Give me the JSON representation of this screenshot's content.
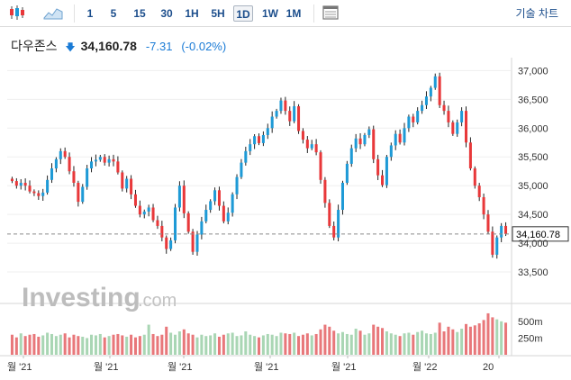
{
  "toolbar": {
    "timeframes": [
      "1",
      "5",
      "15",
      "30",
      "1H",
      "5H",
      "1D",
      "1W",
      "1M"
    ],
    "active": "1D",
    "chart_type_label": "기술 차트"
  },
  "quote": {
    "name": "다우존스",
    "price": "34,160.78",
    "change": "-7.31",
    "change_pct": "(-0.02%)"
  },
  "colors": {
    "up": "#1e9ad6",
    "down": "#e8383a",
    "volume_up": "#a9d6b4",
    "volume_down": "#e8777a",
    "accent": "#1c4e8c",
    "change": "#1a7bd6"
  },
  "watermark": {
    "brand": "Investing",
    "suffix": ".com"
  },
  "chart_data": {
    "type": "candlestick",
    "ylim": [
      33000,
      37100
    ],
    "yticks": [
      "37,000",
      "36,500",
      "36,000",
      "35,500",
      "35,000",
      "34,500",
      "34,000",
      "33,500"
    ],
    "last_price_label": "34,160.78",
    "last_price": 34160.78,
    "volume_ticks": [
      "500m",
      "250m"
    ],
    "volume_max": 700,
    "xticks": [
      "월 '21",
      "월 '21",
      "월 '21",
      "월 '21",
      "월 '21",
      "월 '22",
      "20"
    ],
    "close_path": [
      35080,
      35000,
      35050,
      35000,
      34900,
      34870,
      34820,
      34880,
      35100,
      35300,
      35460,
      35600,
      35500,
      35250,
      35050,
      34720,
      34980,
      35300,
      35420,
      35450,
      35500,
      35400,
      35460,
      35420,
      35230,
      34950,
      35120,
      34850,
      34650,
      34500,
      34550,
      34620,
      34400,
      34300,
      34100,
      33900,
      34050,
      34620,
      35000,
      34520,
      34200,
      33850,
      34150,
      34380,
      34580,
      34730,
      34920,
      34650,
      34380,
      34530,
      34850,
      35150,
      35400,
      35600,
      35720,
      35860,
      35740,
      35880,
      36000,
      36200,
      36300,
      36480,
      36300,
      36120,
      36380,
      35950,
      35800,
      35650,
      35720,
      35580,
      35100,
      34700,
      34300,
      34100,
      34580,
      35050,
      35380,
      35650,
      35820,
      35720,
      35880,
      35980,
      35460,
      35180,
      35010,
      35500,
      35700,
      35900,
      35750,
      36000,
      36200,
      36100,
      36300,
      36400,
      36550,
      36700,
      36900,
      36400,
      36300,
      36100,
      35900,
      36100,
      36300,
      35750,
      35300,
      35000,
      34800,
      34500,
      34200,
      33800,
      34100,
      34300,
      34160.78
    ],
    "volume": [
      300,
      260,
      320,
      280,
      300,
      310,
      270,
      290,
      330,
      310,
      280,
      300,
      320,
      260,
      300,
      280,
      270,
      250,
      300,
      290,
      310,
      260,
      280,
      300,
      310,
      290,
      270,
      300,
      260,
      280,
      300,
      450,
      310,
      280,
      300,
      420,
      330,
      300,
      350,
      380,
      320,
      300,
      260,
      300,
      280,
      290,
      320,
      270,
      300,
      320,
      330,
      280,
      290,
      350,
      300,
      280,
      260,
      290,
      310,
      300,
      280,
      330,
      320,
      310,
      330,
      280,
      300,
      320,
      290,
      310,
      380,
      450,
      420,
      360,
      320,
      340,
      310,
      300,
      390,
      360,
      300,
      320,
      450,
      420,
      400,
      350,
      320,
      300,
      280,
      320,
      330,
      300,
      340,
      360,
      320,
      310,
      330,
      480,
      350,
      420,
      380,
      340,
      390,
      460,
      420,
      440,
      470,
      520,
      620,
      560,
      530,
      500,
      480
    ]
  }
}
